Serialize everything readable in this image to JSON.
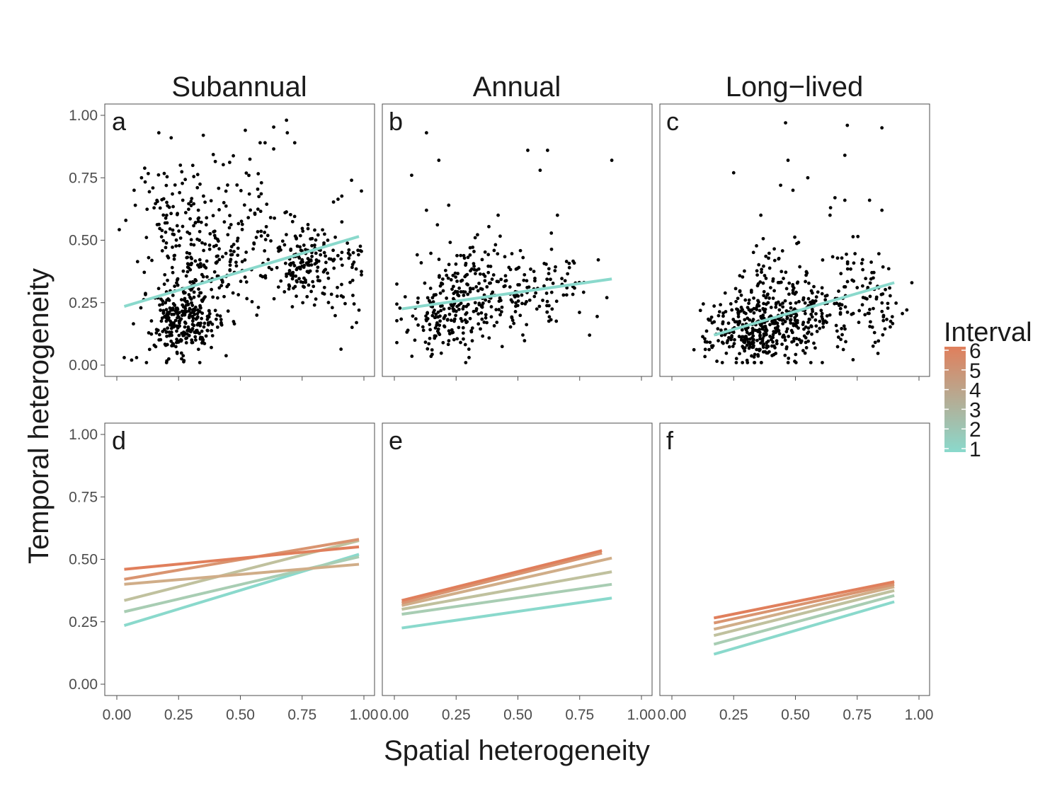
{
  "figure": {
    "xlabel": "Spatial heterogeneity",
    "ylabel": "Temporal heterogeneity",
    "strips": [
      "Subannual",
      "Annual",
      "Long−lived"
    ],
    "legend": {
      "title": "Interval",
      "labels": [
        "1",
        "2",
        "3",
        "4",
        "5",
        "6"
      ],
      "color_low": "#8ad9cc",
      "color_high": "#e07f5c"
    },
    "colors": {
      "point": "#000000",
      "fit_line": "#8ad9cc",
      "interval": [
        "#8ad9cc",
        "#a8cdb3",
        "#c0c19e",
        "#d0ad88",
        "#d99470",
        "#e07f5c"
      ]
    }
  },
  "chart_data": [
    {
      "panel": "a",
      "type": "scatter",
      "title": "Subannual",
      "xlim": [
        0,
        1
      ],
      "ylim": [
        0,
        1
      ],
      "xticks": [
        "0.00",
        "0.25",
        "0.50",
        "0.75",
        "1.00"
      ],
      "yticks": [
        "0.00",
        "0.25",
        "0.50",
        "0.75",
        "1.00"
      ],
      "points_note_blobs": [
        {
          "cx": 0.27,
          "cy": 0.17,
          "sx": 0.07,
          "sy": 0.07,
          "n": 260
        },
        {
          "cx": 0.3,
          "cy": 0.38,
          "sx": 0.09,
          "sy": 0.13,
          "n": 150
        },
        {
          "cx": 0.23,
          "cy": 0.62,
          "sx": 0.08,
          "sy": 0.11,
          "n": 70
        },
        {
          "cx": 0.55,
          "cy": 0.6,
          "sx": 0.08,
          "sy": 0.17,
          "n": 60
        },
        {
          "cx": 0.76,
          "cy": 0.4,
          "sx": 0.07,
          "sy": 0.08,
          "n": 160
        },
        {
          "cx": 0.9,
          "cy": 0.4,
          "sx": 0.06,
          "sy": 0.13,
          "n": 45
        },
        {
          "cx": 0.45,
          "cy": 0.35,
          "sx": 0.06,
          "sy": 0.14,
          "n": 40
        }
      ],
      "points": [
        [
          0.17,
          0.93
        ],
        [
          0.22,
          0.91
        ],
        [
          0.35,
          0.92
        ],
        [
          0.52,
          0.94
        ],
        [
          0.58,
          0.89
        ],
        [
          0.6,
          0.89
        ],
        [
          0.69,
          0.93
        ],
        [
          0.72,
          0.89
        ],
        [
          0.07,
          0.7
        ],
        [
          0.1,
          0.75
        ],
        [
          0.95,
          0.74
        ],
        [
          0.03,
          0.03
        ],
        [
          0.06,
          0.02
        ],
        [
          0.08,
          0.03
        ],
        [
          0.12,
          0.01
        ],
        [
          0.98,
          0.22
        ],
        [
          0.97,
          0.17
        ]
      ],
      "series": [
        {
          "name": "1",
          "x": [
            0.03,
            0.98
          ],
          "y": [
            0.235,
            0.515
          ]
        }
      ]
    },
    {
      "panel": "b",
      "type": "scatter",
      "title": "Annual",
      "xlim": [
        0,
        1
      ],
      "ylim": [
        0,
        1
      ],
      "xticks": [
        "0.00",
        "0.25",
        "0.50",
        "0.75",
        "1.00"
      ],
      "yticks": [
        "0.00",
        "0.25",
        "0.50",
        "0.75",
        "1.00"
      ],
      "points_note_blobs": [
        {
          "cx": 0.2,
          "cy": 0.18,
          "sx": 0.08,
          "sy": 0.08,
          "n": 120
        },
        {
          "cx": 0.3,
          "cy": 0.32,
          "sx": 0.1,
          "sy": 0.09,
          "n": 150
        },
        {
          "cx": 0.52,
          "cy": 0.28,
          "sx": 0.1,
          "sy": 0.08,
          "n": 90
        },
        {
          "cx": 0.7,
          "cy": 0.32,
          "sx": 0.07,
          "sy": 0.07,
          "n": 30
        }
      ],
      "points": [
        [
          0.13,
          0.93
        ],
        [
          0.07,
          0.76
        ],
        [
          0.18,
          0.82
        ],
        [
          0.54,
          0.86
        ],
        [
          0.62,
          0.86
        ],
        [
          0.59,
          0.78
        ],
        [
          0.88,
          0.82
        ],
        [
          0.13,
          0.62
        ],
        [
          0.22,
          0.64
        ],
        [
          0.42,
          0.6
        ],
        [
          0.66,
          0.6
        ],
        [
          0.79,
          0.12
        ],
        [
          0.86,
          0.27
        ],
        [
          0.01,
          0.09
        ]
      ],
      "series": [
        {
          "name": "1",
          "x": [
            0.03,
            0.88
          ],
          "y": [
            0.225,
            0.345
          ]
        }
      ]
    },
    {
      "panel": "c",
      "type": "scatter",
      "title": "Long−lived",
      "xlim": [
        0,
        1
      ],
      "ylim": [
        0,
        1
      ],
      "xticks": [
        "0.00",
        "0.25",
        "0.50",
        "0.75",
        "1.00"
      ],
      "yticks": [
        "0.00",
        "0.25",
        "0.50",
        "0.75",
        "1.00"
      ],
      "points_note_blobs": [
        {
          "cx": 0.33,
          "cy": 0.13,
          "sx": 0.1,
          "sy": 0.06,
          "n": 280
        },
        {
          "cx": 0.5,
          "cy": 0.2,
          "sx": 0.1,
          "sy": 0.08,
          "n": 150
        },
        {
          "cx": 0.42,
          "cy": 0.33,
          "sx": 0.1,
          "sy": 0.09,
          "n": 70
        },
        {
          "cx": 0.72,
          "cy": 0.27,
          "sx": 0.09,
          "sy": 0.1,
          "n": 90
        },
        {
          "cx": 0.87,
          "cy": 0.22,
          "sx": 0.04,
          "sy": 0.07,
          "n": 30
        }
      ],
      "points": [
        [
          0.46,
          0.97
        ],
        [
          0.71,
          0.96
        ],
        [
          0.85,
          0.95
        ],
        [
          0.7,
          0.84
        ],
        [
          0.25,
          0.77
        ],
        [
          0.47,
          0.82
        ],
        [
          0.55,
          0.75
        ],
        [
          0.44,
          0.72
        ],
        [
          0.49,
          0.7
        ],
        [
          0.66,
          0.67
        ],
        [
          0.7,
          0.66
        ],
        [
          0.8,
          0.66
        ],
        [
          0.85,
          0.62
        ],
        [
          0.64,
          0.6
        ],
        [
          0.36,
          0.6
        ]
      ],
      "series": [
        {
          "name": "1",
          "x": [
            0.17,
            0.9
          ],
          "y": [
            0.12,
            0.33
          ]
        }
      ]
    },
    {
      "panel": "d",
      "type": "line",
      "xlim": [
        0,
        1
      ],
      "ylim": [
        0,
        1
      ],
      "xticks": [
        "0.00",
        "0.25",
        "0.50",
        "0.75",
        "1.00"
      ],
      "yticks": [
        "0.00",
        "0.25",
        "0.50",
        "0.75",
        "1.00"
      ],
      "series": [
        {
          "name": "1",
          "x": [
            0.03,
            0.98
          ],
          "y": [
            0.235,
            0.52
          ]
        },
        {
          "name": "2",
          "x": [
            0.03,
            0.98
          ],
          "y": [
            0.29,
            0.51
          ]
        },
        {
          "name": "3",
          "x": [
            0.03,
            0.98
          ],
          "y": [
            0.335,
            0.575
          ]
        },
        {
          "name": "4",
          "x": [
            0.03,
            0.98
          ],
          "y": [
            0.4,
            0.48
          ]
        },
        {
          "name": "5",
          "x": [
            0.03,
            0.98
          ],
          "y": [
            0.42,
            0.58
          ]
        },
        {
          "name": "6",
          "x": [
            0.03,
            0.98
          ],
          "y": [
            0.46,
            0.55
          ]
        }
      ]
    },
    {
      "panel": "e",
      "type": "line",
      "xlim": [
        0,
        1
      ],
      "ylim": [
        0,
        1
      ],
      "xticks": [
        "0.00",
        "0.25",
        "0.50",
        "0.75",
        "1.00"
      ],
      "yticks": [
        "0.00",
        "0.25",
        "0.50",
        "0.75",
        "1.00"
      ],
      "series": [
        {
          "name": "1",
          "x": [
            0.03,
            0.88
          ],
          "y": [
            0.225,
            0.345
          ]
        },
        {
          "name": "2",
          "x": [
            0.03,
            0.88
          ],
          "y": [
            0.28,
            0.4
          ]
        },
        {
          "name": "3",
          "x": [
            0.03,
            0.88
          ],
          "y": [
            0.3,
            0.45
          ]
        },
        {
          "name": "4",
          "x": [
            0.03,
            0.88
          ],
          "y": [
            0.315,
            0.505
          ]
        },
        {
          "name": "5",
          "x": [
            0.03,
            0.84
          ],
          "y": [
            0.325,
            0.525
          ]
        },
        {
          "name": "6",
          "x": [
            0.03,
            0.84
          ],
          "y": [
            0.335,
            0.535
          ]
        }
      ]
    },
    {
      "panel": "f",
      "type": "line",
      "xlim": [
        0,
        1
      ],
      "ylim": [
        0,
        1
      ],
      "xticks": [
        "0.00",
        "0.25",
        "0.50",
        "0.75",
        "1.00"
      ],
      "yticks": [
        "0.00",
        "0.25",
        "0.50",
        "0.75",
        "1.00"
      ],
      "series": [
        {
          "name": "1",
          "x": [
            0.17,
            0.9
          ],
          "y": [
            0.12,
            0.33
          ]
        },
        {
          "name": "2",
          "x": [
            0.17,
            0.9
          ],
          "y": [
            0.16,
            0.355
          ]
        },
        {
          "name": "3",
          "x": [
            0.17,
            0.9
          ],
          "y": [
            0.195,
            0.375
          ]
        },
        {
          "name": "4",
          "x": [
            0.17,
            0.9
          ],
          "y": [
            0.22,
            0.39
          ]
        },
        {
          "name": "5",
          "x": [
            0.17,
            0.9
          ],
          "y": [
            0.245,
            0.4
          ]
        },
        {
          "name": "6",
          "x": [
            0.17,
            0.9
          ],
          "y": [
            0.265,
            0.41
          ]
        }
      ]
    }
  ]
}
